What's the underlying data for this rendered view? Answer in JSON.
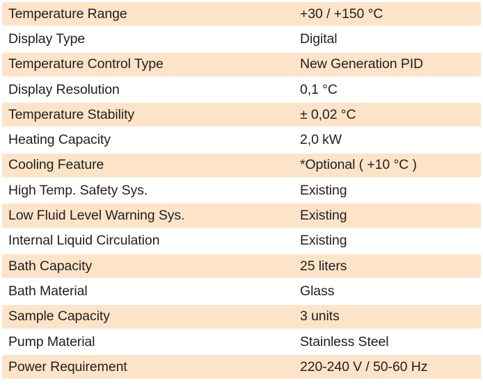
{
  "rows": [
    {
      "label": "Temperature Range",
      "value": "+30 / +150 °C"
    },
    {
      "label": "Display Type",
      "value": "Digital"
    },
    {
      "label": "Temperature Control Type",
      "value": "New Generation PID"
    },
    {
      "label": "Display Resolution",
      "value": "0,1 °C"
    },
    {
      "label": "Temperature Stability",
      "value": "± 0,02 °C"
    },
    {
      "label": "Heating Capacity",
      "value": "2,0 kW"
    },
    {
      "label": "Cooling Feature",
      "value": "*Optional ( +10 °C )"
    },
    {
      "label": "High Temp. Safety Sys.",
      "value": "Existing"
    },
    {
      "label": "Low Fluid Level Warning Sys.",
      "value": "Existing"
    },
    {
      "label": "Internal Liquid Circulation",
      "value": "Existing"
    },
    {
      "label": "Bath Capacity",
      "value": "25 liters"
    },
    {
      "label": "Bath Material",
      "value": "Glass"
    },
    {
      "label": "Sample Capacity",
      "value": "3 units"
    },
    {
      "label": "Pump Material",
      "value": "Stainless Steel"
    },
    {
      "label": "Power Requirement",
      "value": "220-240 V / 50-60 Hz"
    }
  ],
  "colors": {
    "shaded_row": "#fde4c9",
    "plain_row": "#ffffff",
    "text": "#1f1f1f"
  }
}
